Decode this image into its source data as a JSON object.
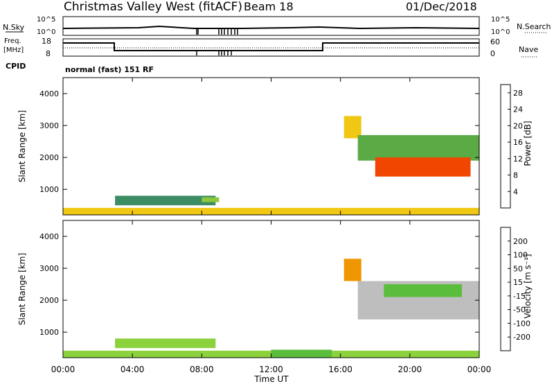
{
  "header": {
    "station": "Christmas Valley West (fitACF)",
    "beam": "Beam 18",
    "date": "01/Dec/2018"
  },
  "summary": {
    "nsky_label": "N.Sky",
    "nsearch_label": "N.Search",
    "nsky_ticks": [
      "10^5",
      "10^0"
    ],
    "nsky_right_ticks": [
      "10^5",
      "10^0"
    ],
    "freq_label_1": "Freq.",
    "freq_label_2": "[MHz]",
    "freq_ticks": [
      "18",
      "8"
    ],
    "nave_ticks": [
      "60",
      "0"
    ],
    "nave_label": "Nave",
    "cpid_label": "CPID",
    "cpid_text": "normal (fast) 151 RF"
  },
  "x_axis": {
    "label": "Time UT",
    "ticks": [
      "00:00",
      "04:00",
      "08:00",
      "12:00",
      "16:00",
      "20:00",
      "00:00"
    ]
  },
  "colors": {
    "power": [
      "#1414e6",
      "#1e50c8",
      "#2d7896",
      "#3c8c64",
      "#5aaa46",
      "#8cc83c",
      "#c8dc28",
      "#f0c814",
      "#f0a000",
      "#f07800",
      "#f04600",
      "#e61414"
    ],
    "velocity": [
      "#1414b4",
      "#1e50c8",
      "#2878a0",
      "#3c965a",
      "#5abe3c",
      "#8cd23c",
      "#bebebe",
      "#bebebe",
      "#f0c814",
      "#f09600",
      "#f06400",
      "#e61414"
    ]
  },
  "chart_data": [
    {
      "type": "heatmap",
      "title": "",
      "xlabel": "Time UT",
      "ylabel": "Slant Range [km]",
      "xlim": [
        0,
        24
      ],
      "ylim": [
        200,
        4500
      ],
      "y_ticks": [
        "1000",
        "2000",
        "3000",
        "4000"
      ],
      "colorbar": {
        "label": "Power [dB]",
        "ticks": [
          "4",
          "8",
          "12",
          "16",
          "20",
          "24",
          "28"
        ],
        "range": [
          0,
          30
        ]
      },
      "regions": [
        {
          "t0": 0,
          "t1": 24,
          "r0": 200,
          "r1": 420,
          "value": 18
        },
        {
          "t0": 3,
          "t1": 8.8,
          "r0": 500,
          "r1": 800,
          "value": 8
        },
        {
          "t0": 8,
          "t1": 9,
          "r0": 600,
          "r1": 750,
          "value": 14
        },
        {
          "t0": 16.2,
          "t1": 17.2,
          "r0": 2600,
          "r1": 3300,
          "value": 18
        },
        {
          "t0": 17,
          "t1": 24,
          "r0": 1900,
          "r1": 2700,
          "value": 12
        },
        {
          "t0": 18,
          "t1": 23.5,
          "r0": 1400,
          "r1": 2000,
          "value": 26
        }
      ]
    },
    {
      "type": "heatmap",
      "title": "",
      "xlabel": "Time UT",
      "ylabel": "Slant Range [km]",
      "xlim": [
        0,
        24
      ],
      "ylim": [
        200,
        4500
      ],
      "y_ticks": [
        "1000",
        "2000",
        "3000",
        "4000"
      ],
      "colorbar": {
        "label": "Velocity [m s⁻¹]",
        "ticks": [
          "200",
          "100",
          "50",
          "15",
          "-15",
          "-50",
          "-100",
          "-200"
        ],
        "range": [
          -250,
          250
        ]
      },
      "regions": [
        {
          "t0": 0,
          "t1": 24,
          "r0": 200,
          "r1": 420,
          "value": -20
        },
        {
          "t0": 12,
          "t1": 15.5,
          "r0": 200,
          "r1": 450,
          "value": -60
        },
        {
          "t0": 3,
          "t1": 8.8,
          "r0": 500,
          "r1": 800,
          "value": -20
        },
        {
          "t0": 16.2,
          "t1": 17.2,
          "r0": 2600,
          "r1": 3300,
          "value": 150
        },
        {
          "t0": 17,
          "t1": 24,
          "r0": 1400,
          "r1": 2600,
          "value": 0
        },
        {
          "t0": 18.5,
          "t1": 23,
          "r0": 2100,
          "r1": 2500,
          "value": -60
        }
      ]
    }
  ]
}
